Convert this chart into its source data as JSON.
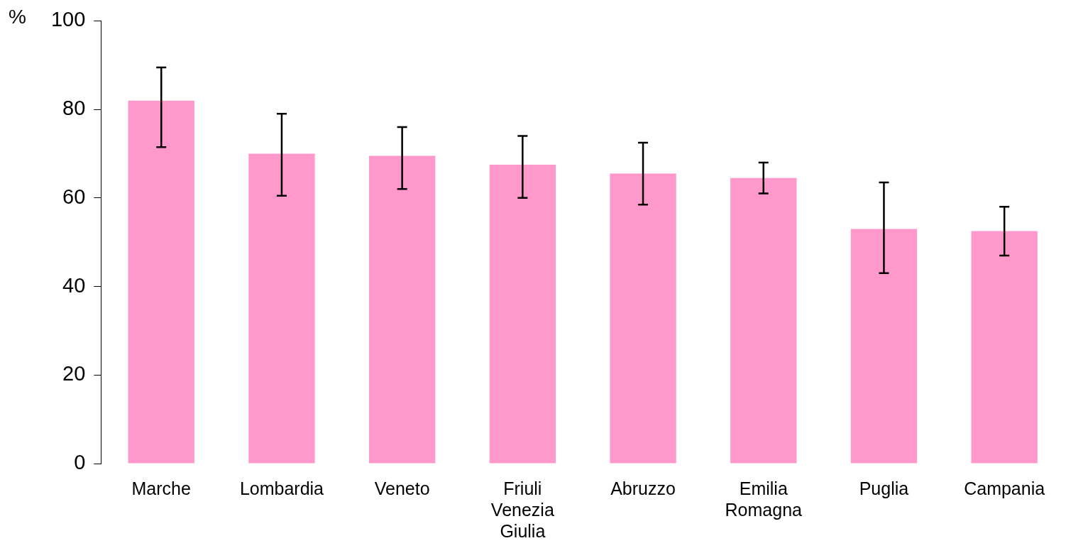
{
  "chart_data": {
    "type": "bar",
    "ylabel": "%",
    "categories": [
      "Marche",
      "Lombardia",
      "Veneto",
      "Friuli Venezia Giulia",
      "Abruzzo",
      "Emilia Romagna",
      "Puglia",
      "Campania"
    ],
    "values": [
      82,
      70,
      69.5,
      67.5,
      65.5,
      64.5,
      53,
      52.5
    ],
    "errors": [
      [
        71.5,
        89.5
      ],
      [
        60.5,
        79
      ],
      [
        62,
        76
      ],
      [
        60,
        74
      ],
      [
        58.5,
        72.5
      ],
      [
        61,
        68
      ],
      [
        43,
        63.5
      ],
      [
        47,
        58
      ]
    ],
    "color": "#ff99cc",
    "ylim": [
      0,
      100
    ],
    "yticks": [
      0,
      20,
      40,
      60,
      80,
      100
    ],
    "grid": false,
    "legend": false
  }
}
